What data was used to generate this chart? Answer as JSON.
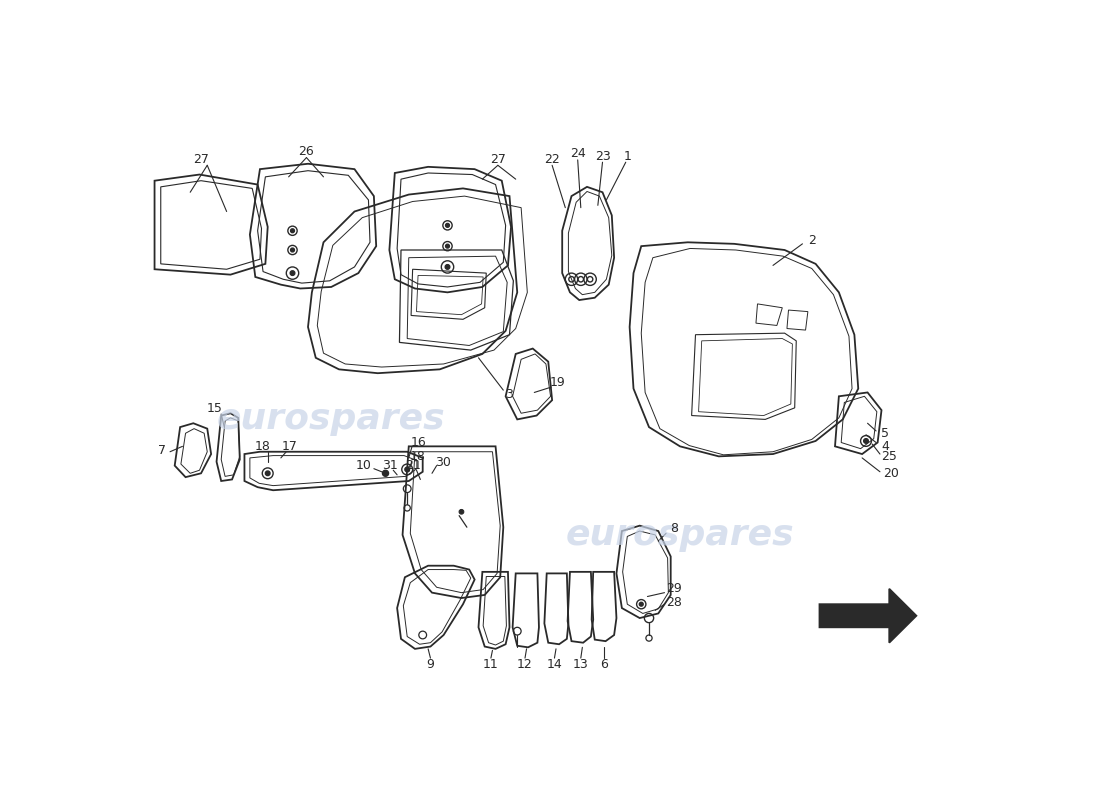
{
  "background_color": "#ffffff",
  "line_color": "#2a2a2a",
  "watermark_color": "#c8d4e8",
  "fig_width": 11.0,
  "fig_height": 8.0
}
